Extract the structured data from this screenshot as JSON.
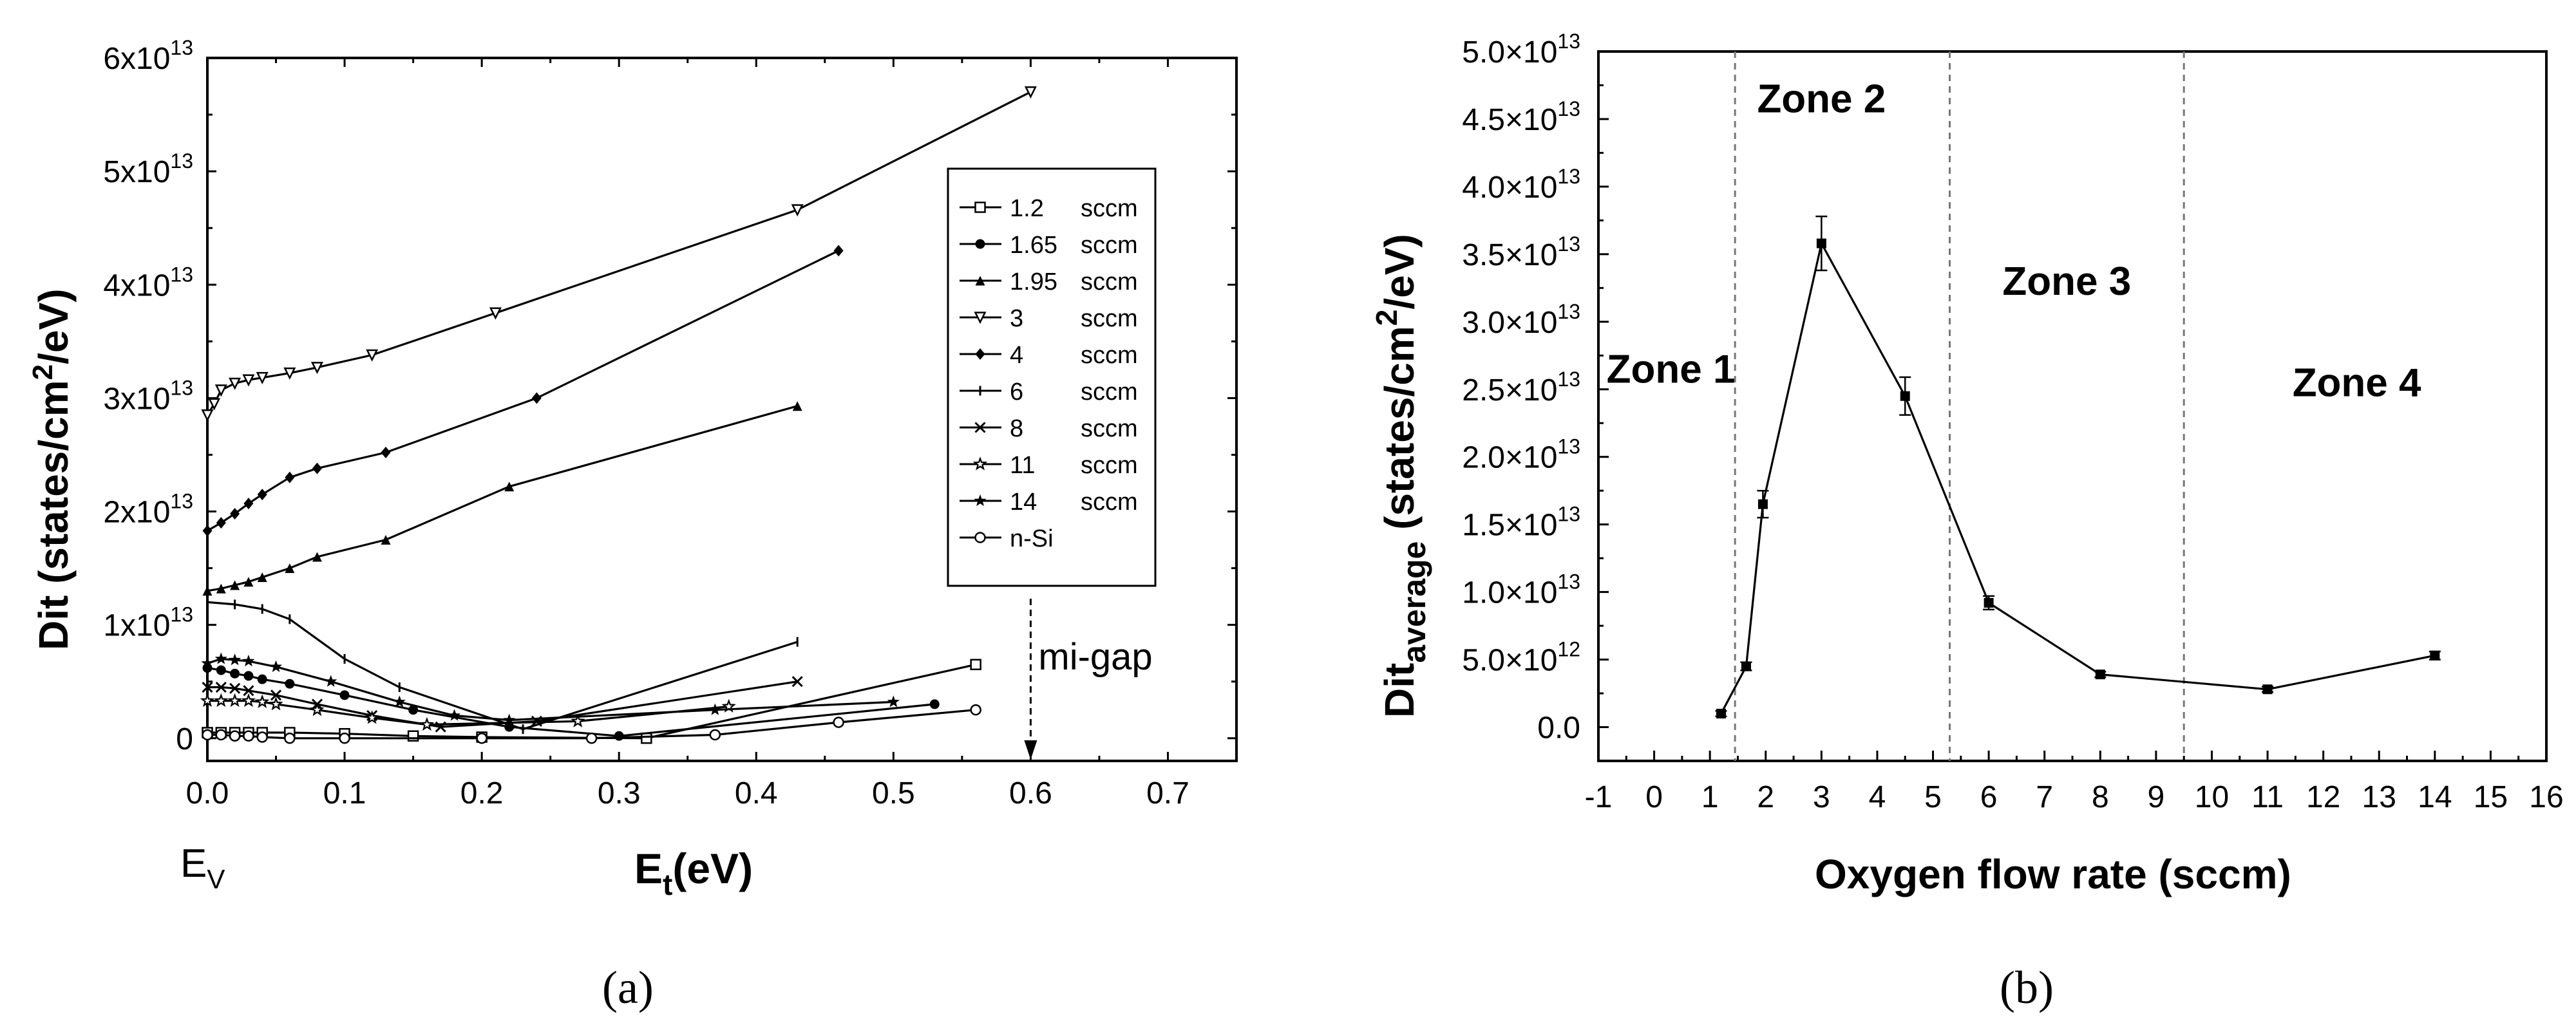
{
  "chart_data": [
    {
      "type": "line",
      "panel": "(a)",
      "xlabel": "Et(eV)",
      "xlabel_main": "E",
      "xlabel_sub": "t",
      "xlabel_unit": "(eV)",
      "ylabel": "Dit (states/cm2/eV)",
      "ylabel_pre": "Dit (states/cm",
      "ylabel_sup": "2",
      "ylabel_post": "/eV)",
      "xlim": [
        0,
        0.75
      ],
      "ylim": [
        -2000000000000.0,
        60000000000000.0
      ],
      "x_ticks": [
        0.0,
        0.1,
        0.2,
        0.3,
        0.4,
        0.5,
        0.6,
        0.7
      ],
      "x_tick_labels": [
        "0.0",
        "0.1",
        "0.2",
        "0.3",
        "0.4",
        "0.5",
        "0.6",
        "0.7"
      ],
      "y_ticks": [
        0,
        10000000000000.0,
        20000000000000.0,
        30000000000000.0,
        40000000000000.0,
        50000000000000.0,
        60000000000000.0
      ],
      "y_tick_labels": [
        {
          "base": "0",
          "exp": ""
        },
        {
          "base": "1x10",
          "exp": "13"
        },
        {
          "base": "2x10",
          "exp": "13"
        },
        {
          "base": "3x10",
          "exp": "13"
        },
        {
          "base": "4x10",
          "exp": "13"
        },
        {
          "base": "5x10",
          "exp": "13"
        },
        {
          "base": "6x10",
          "exp": "13"
        }
      ],
      "annotations": {
        "ev_main": "E",
        "ev_sub": "V",
        "midgap": "mi-gap",
        "midgap_x": 0.6
      },
      "legend_position": "top-right",
      "series": [
        {
          "name": "1.2",
          "unit": "sccm",
          "marker": "square-open",
          "x": [
            0,
            0.01,
            0.02,
            0.03,
            0.04,
            0.06,
            0.1,
            0.15,
            0.2,
            0.32,
            0.56
          ],
          "y": [
            500000000000.0,
            500000000000.0,
            500000000000.0,
            500000000000.0,
            500000000000.0,
            500000000000.0,
            400000000000.0,
            200000000000.0,
            100000000000.0,
            0.0,
            6500000000000.0
          ]
        },
        {
          "name": "1.65",
          "unit": "sccm",
          "marker": "circle-filled",
          "x": [
            0,
            0.01,
            0.02,
            0.03,
            0.04,
            0.06,
            0.1,
            0.15,
            0.22,
            0.3,
            0.53
          ],
          "y": [
            6200000000000.0,
            6000000000000.0,
            5700000000000.0,
            5500000000000.0,
            5200000000000.0,
            4800000000000.0,
            3800000000000.0,
            2500000000000.0,
            1000000000000.0,
            200000000000.0,
            3000000000000.0
          ]
        },
        {
          "name": "1.95",
          "unit": "sccm",
          "marker": "triangle-filled",
          "x": [
            0,
            0.01,
            0.02,
            0.03,
            0.04,
            0.06,
            0.08,
            0.13,
            0.22,
            0.43
          ],
          "y": [
            13000000000000.0,
            13200000000000.0,
            13500000000000.0,
            13800000000000.0,
            14200000000000.0,
            15000000000000.0,
            16000000000000.0,
            17500000000000.0,
            22200000000000.0,
            29300000000000.0
          ]
        },
        {
          "name": "3",
          "unit": "sccm",
          "marker": "triangle-down-open",
          "x": [
            0,
            0.005,
            0.01,
            0.02,
            0.03,
            0.04,
            0.06,
            0.08,
            0.12,
            0.21,
            0.43,
            0.6
          ],
          "y": [
            28500000000000.0,
            29500000000000.0,
            30700000000000.0,
            31300000000000.0,
            31600000000000.0,
            31800000000000.0,
            32200000000000.0,
            32700000000000.0,
            33800000000000.0,
            37500000000000.0,
            46600000000000.0,
            57000000000000.0
          ]
        },
        {
          "name": "4",
          "unit": "sccm",
          "marker": "diamond-filled",
          "x": [
            0,
            0.01,
            0.02,
            0.03,
            0.04,
            0.06,
            0.08,
            0.13,
            0.24,
            0.46
          ],
          "y": [
            18300000000000.0,
            19000000000000.0,
            19800000000000.0,
            20700000000000.0,
            21500000000000.0,
            23000000000000.0,
            23800000000000.0,
            25200000000000.0,
            30000000000000.0,
            43000000000000.0
          ]
        },
        {
          "name": "6",
          "unit": "sccm",
          "marker": "vbar",
          "x": [
            0,
            0.02,
            0.04,
            0.06,
            0.1,
            0.14,
            0.23,
            0.43
          ],
          "y": [
            12000000000000.0,
            11800000000000.0,
            11400000000000.0,
            10500000000000.0,
            7000000000000.0,
            4500000000000.0,
            800000000000.0,
            8500000000000.0
          ]
        },
        {
          "name": "8",
          "unit": "sccm",
          "marker": "x",
          "x": [
            0,
            0.01,
            0.02,
            0.03,
            0.05,
            0.08,
            0.12,
            0.17,
            0.24,
            0.43
          ],
          "y": [
            4500000000000.0,
            4500000000000.0,
            4400000000000.0,
            4200000000000.0,
            3800000000000.0,
            3000000000000.0,
            2000000000000.0,
            1000000000000.0,
            1500000000000.0,
            5000000000000.0
          ]
        },
        {
          "name": "11",
          "unit": "sccm",
          "marker": "star-open",
          "x": [
            0,
            0.01,
            0.02,
            0.03,
            0.04,
            0.05,
            0.08,
            0.12,
            0.16,
            0.27,
            0.38
          ],
          "y": [
            3300000000000.0,
            3300000000000.0,
            3300000000000.0,
            3300000000000.0,
            3200000000000.0,
            3000000000000.0,
            2500000000000.0,
            1800000000000.0,
            1200000000000.0,
            1500000000000.0,
            2800000000000.0
          ]
        },
        {
          "name": "14",
          "unit": "sccm",
          "marker": "star-filled",
          "x": [
            0,
            0.01,
            0.02,
            0.03,
            0.05,
            0.09,
            0.14,
            0.18,
            0.22,
            0.37,
            0.5
          ],
          "y": [
            6600000000000.0,
            7000000000000.0,
            6900000000000.0,
            6800000000000.0,
            6300000000000.0,
            5000000000000.0,
            3200000000000.0,
            2000000000000.0,
            1600000000000.0,
            2500000000000.0,
            3200000000000.0
          ]
        },
        {
          "name": "n-Si",
          "unit": "",
          "marker": "circle-open",
          "x": [
            0,
            0.01,
            0.02,
            0.03,
            0.04,
            0.06,
            0.1,
            0.2,
            0.28,
            0.37,
            0.46,
            0.56
          ],
          "y": [
            300000000000.0,
            300000000000.0,
            200000000000.0,
            200000000000.0,
            100000000000.0,
            0.0,
            0.0,
            0.0,
            0.0,
            300000000000.0,
            1400000000000.0,
            2500000000000.0
          ]
        }
      ]
    },
    {
      "type": "line",
      "panel": "(b)",
      "xlabel": "Oxygen flow rate (sccm)",
      "ylabel": "Ditaverage (states/cm2/eV)",
      "ylabel_pre": "Dit",
      "ylabel_sub": "average",
      "ylabel_mid": " (states/cm",
      "ylabel_sup": "2",
      "ylabel_post": "/eV)",
      "xlim": [
        -1,
        16
      ],
      "ylim": [
        -2500000000000.0,
        50000000000000.0
      ],
      "x_ticks": [
        -1,
        0,
        1,
        2,
        3,
        4,
        5,
        6,
        7,
        8,
        9,
        10,
        11,
        12,
        13,
        14,
        15,
        16
      ],
      "x_tick_labels": [
        "-1",
        "0",
        "1",
        "2",
        "3",
        "4",
        "5",
        "6",
        "7",
        "8",
        "9",
        "10",
        "11",
        "12",
        "13",
        "14",
        "15",
        "16"
      ],
      "y_ticks": [
        0,
        5000000000000.0,
        10000000000000.0,
        15000000000000.0,
        20000000000000.0,
        25000000000000.0,
        30000000000000.0,
        35000000000000.0,
        40000000000000.0,
        45000000000000.0,
        50000000000000.0
      ],
      "y_tick_labels": [
        {
          "base": "0.0",
          "exp": ""
        },
        {
          "base": "5.0×10",
          "exp": "12"
        },
        {
          "base": "1.0×10",
          "exp": "13"
        },
        {
          "base": "1.5×10",
          "exp": "13"
        },
        {
          "base": "2.0×10",
          "exp": "13"
        },
        {
          "base": "2.5×10",
          "exp": "13"
        },
        {
          "base": "3.0×10",
          "exp": "13"
        },
        {
          "base": "3.5×10",
          "exp": "13"
        },
        {
          "base": "4.0×10",
          "exp": "13"
        },
        {
          "base": "4.5×10",
          "exp": "13"
        },
        {
          "base": "5.0×10",
          "exp": "13"
        }
      ],
      "zone_dividers": [
        1.45,
        5.3,
        9.5
      ],
      "zones": [
        {
          "label": "Zone 1",
          "x": 0.3,
          "y": 25500000000000.0
        },
        {
          "label": "Zone 2",
          "x": 3.0,
          "y": 45500000000000.0
        },
        {
          "label": "Zone 3",
          "x": 7.4,
          "y": 32000000000000.0
        },
        {
          "label": "Zone 4",
          "x": 12.6,
          "y": 24500000000000.0
        }
      ],
      "series": [
        {
          "name": "Dit average",
          "x": [
            1.2,
            1.65,
            1.95,
            3,
            4.5,
            6,
            8,
            11,
            14
          ],
          "y": [
            1000000000000.0,
            4500000000000.0,
            16500000000000.0,
            35800000000000.0,
            24500000000000.0,
            9200000000000.0,
            3900000000000.0,
            2800000000000.0,
            5300000000000.0
          ],
          "err": [
            200000000000.0,
            300000000000.0,
            1000000000000.0,
            2000000000000.0,
            1400000000000.0,
            500000000000.0,
            200000000000.0,
            200000000000.0,
            300000000000.0
          ]
        }
      ]
    }
  ],
  "captions": {
    "a": "(a)",
    "b": "(b)"
  }
}
